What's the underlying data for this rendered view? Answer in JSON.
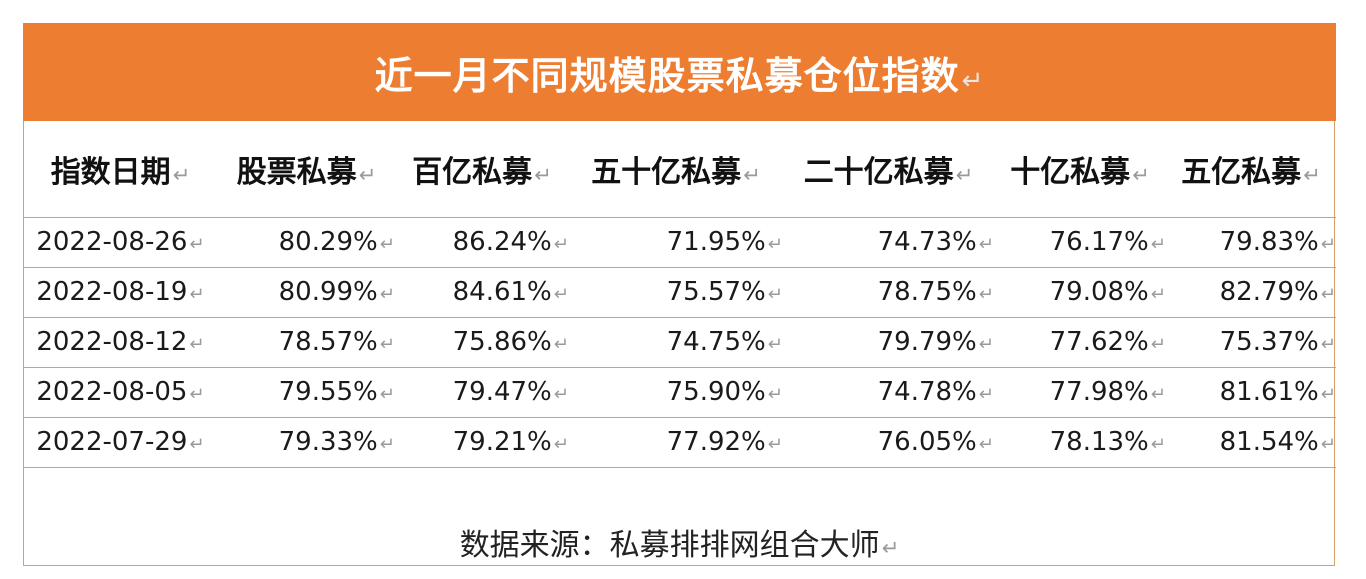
{
  "title": "近一月不同规模股票私募仓位指数",
  "para_mark": "↵",
  "cell_mark": "ꜜ",
  "table": {
    "headers": [
      "指数日期",
      "股票私募",
      "百亿私募",
      "五十亿私募",
      "二十亿私募",
      "十亿私募",
      "五亿私募"
    ],
    "rows": [
      [
        "2022-08-26",
        "80.29%",
        "86.24%",
        "71.95%",
        "74.73%",
        "76.17%",
        "79.83%"
      ],
      [
        "2022-08-19",
        "80.99%",
        "84.61%",
        "75.57%",
        "78.75%",
        "79.08%",
        "82.79%"
      ],
      [
        "2022-08-12",
        "78.57%",
        "75.86%",
        "74.75%",
        "79.79%",
        "77.62%",
        "75.37%"
      ],
      [
        "2022-08-05",
        "79.55%",
        "79.47%",
        "75.90%",
        "74.78%",
        "77.98%",
        "81.61%"
      ],
      [
        "2022-07-29",
        "79.33%",
        "79.21%",
        "77.92%",
        "76.05%",
        "78.13%",
        "81.54%"
      ]
    ]
  },
  "source": "数据来源：私募排排网组合大师",
  "colors": {
    "accent": "#ed7d31",
    "border": "#d9a066"
  }
}
